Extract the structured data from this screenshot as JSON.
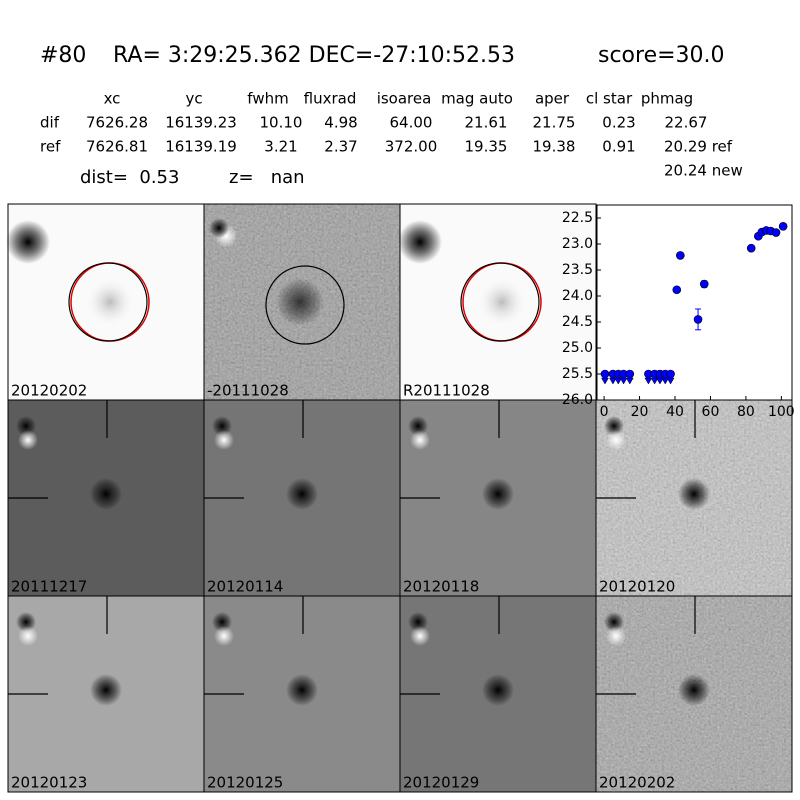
{
  "header": {
    "id": "#80",
    "coords": "RA= 3:29:25.362 DEC=-27:10:52.53",
    "score": "score=30.0"
  },
  "table": {
    "columns": [
      "xc",
      "yc",
      "fwhm",
      "fluxrad",
      "isoarea",
      "mag auto",
      "aper",
      "cl star",
      "phmag"
    ],
    "rows": [
      [
        "dif",
        "7626.28",
        "16139.23",
        "10.10",
        "4.98",
        "64.00",
        "21.61",
        "21.75",
        "0.23",
        "22.67"
      ],
      [
        "ref",
        "7626.81",
        "16139.19",
        "3.21",
        "2.37",
        "372.00",
        "19.35",
        "19.38",
        "0.91",
        "20.29 ref"
      ]
    ],
    "note": "20.24 new"
  },
  "summary": {
    "dist": "dist=  0.53",
    "z": "z=   nan"
  },
  "panels": [
    {
      "label": "20120202",
      "color": "#000000"
    },
    {
      "label": "-20111028",
      "color": "#000000"
    },
    {
      "label": "R20111028",
      "color": "#000000"
    },
    {
      "label": "20111217",
      "color": "#000000"
    },
    {
      "label": "20120114",
      "color": "#000000"
    },
    {
      "label": "20120118",
      "color": "#000000"
    },
    {
      "label": "20120120",
      "color": "#000000"
    },
    {
      "label": "20120123",
      "color": "#000000"
    },
    {
      "label": "20120125",
      "color": "#000000"
    },
    {
      "label": "20120129",
      "color": "#000000"
    },
    {
      "label": "20120202",
      "color": "#ff0000"
    }
  ],
  "chart_data": {
    "type": "scatter",
    "xlim": [
      -4,
      106
    ],
    "ylim": [
      26.0,
      22.25
    ],
    "xticks": [
      0,
      20,
      40,
      60,
      80,
      100
    ],
    "yticks": [
      22.5,
      {
        "value": 23.0,
        "label": "23.0"
      },
      23.5,
      {
        "value": 24.0,
        "label": "24.0"
      },
      24.5,
      {
        "value": 25.0,
        "label": "25.0"
      },
      25.5,
      {
        "value": 26.0,
        "label": "26.0"
      }
    ],
    "series": [
      {
        "color": "#0000ff",
        "marker": "circle",
        "x": [
          41,
          43,
          53,
          56.5,
          83,
          87,
          89,
          91.5,
          94,
          97,
          101
        ],
        "values": [
          23.88,
          23.22,
          24.45,
          23.77,
          23.08,
          22.85,
          22.77,
          22.74,
          22.75,
          22.78,
          22.66
        ],
        "errors": [
          0.03,
          0.03,
          0.2,
          0.06,
          0.02,
          0.02,
          0.02,
          0.02,
          0.02,
          0.02,
          0.02
        ]
      },
      {
        "color": "#0000ff",
        "marker": "limit",
        "x": [
          0.5,
          5,
          8,
          11,
          14.5,
          25,
          28.5,
          31.5,
          34.5,
          37.5
        ],
        "values": [
          25.5,
          25.5,
          25.5,
          25.5,
          25.5,
          25.5,
          25.5,
          25.5,
          25.5,
          25.5
        ]
      }
    ]
  }
}
